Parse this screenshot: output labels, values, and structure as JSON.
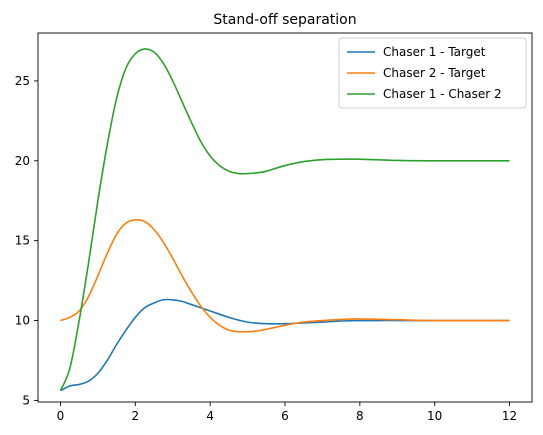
{
  "chart_data": {
    "type": "line",
    "title": "Stand-off separation",
    "xlabel": "",
    "ylabel": "",
    "xlim": [
      -0.6,
      12.6
    ],
    "ylim": [
      4.9,
      28.0
    ],
    "xticks": [
      0,
      2,
      4,
      6,
      8,
      10,
      12
    ],
    "yticks": [
      5,
      10,
      15,
      20,
      25
    ],
    "grid": false,
    "legend_position": "top-right",
    "series": [
      {
        "name": "Chaser 1 - Target",
        "color": "#1f77b4",
        "x": [
          0,
          0.25,
          0.5,
          0.75,
          1.0,
          1.25,
          1.5,
          1.75,
          2.0,
          2.25,
          2.5,
          2.75,
          3.0,
          3.25,
          3.5,
          3.75,
          4.0,
          4.5,
          5.0,
          5.5,
          6.0,
          6.5,
          7.0,
          7.5,
          8.0,
          9.0,
          10.0,
          11.0,
          12.0
        ],
        "y": [
          5.6,
          5.9,
          6.0,
          6.2,
          6.7,
          7.5,
          8.5,
          9.4,
          10.2,
          10.8,
          11.1,
          11.3,
          11.3,
          11.2,
          11.0,
          10.8,
          10.6,
          10.2,
          9.9,
          9.8,
          9.8,
          9.85,
          9.9,
          9.97,
          10.0,
          10.0,
          10.0,
          10.0,
          10.0
        ]
      },
      {
        "name": "Chaser 2 - Target",
        "color": "#ff7f0e",
        "x": [
          0,
          0.25,
          0.5,
          0.75,
          1.0,
          1.25,
          1.5,
          1.75,
          2.0,
          2.25,
          2.5,
          2.75,
          3.0,
          3.25,
          3.5,
          3.75,
          4.0,
          4.25,
          4.5,
          4.75,
          5.0,
          5.25,
          5.5,
          6.0,
          6.5,
          7.0,
          7.5,
          8.0,
          9.0,
          10.0,
          11.0,
          12.0
        ],
        "y": [
          10.0,
          10.2,
          10.6,
          11.5,
          12.8,
          14.2,
          15.4,
          16.1,
          16.3,
          16.2,
          15.7,
          14.9,
          13.9,
          12.8,
          11.8,
          10.9,
          10.2,
          9.7,
          9.4,
          9.3,
          9.3,
          9.35,
          9.45,
          9.7,
          9.9,
          10.0,
          10.07,
          10.1,
          10.05,
          10.0,
          10.0,
          10.0
        ]
      },
      {
        "name": "Chaser 1 - Chaser 2",
        "color": "#2ca02c",
        "x": [
          0,
          0.25,
          0.5,
          0.75,
          1.0,
          1.25,
          1.5,
          1.75,
          2.0,
          2.25,
          2.5,
          2.75,
          3.0,
          3.25,
          3.5,
          3.75,
          4.0,
          4.25,
          4.5,
          4.75,
          5.0,
          5.25,
          5.5,
          6.0,
          6.5,
          7.0,
          7.5,
          8.0,
          9.0,
          10.0,
          11.0,
          12.0
        ],
        "y": [
          5.6,
          7.0,
          10.0,
          13.6,
          17.5,
          21.0,
          23.9,
          25.8,
          26.7,
          27.0,
          26.8,
          26.1,
          25.0,
          23.7,
          22.4,
          21.2,
          20.3,
          19.7,
          19.35,
          19.2,
          19.2,
          19.25,
          19.35,
          19.7,
          19.95,
          20.07,
          20.1,
          20.1,
          20.02,
          20.0,
          20.0,
          20.0
        ]
      }
    ]
  }
}
